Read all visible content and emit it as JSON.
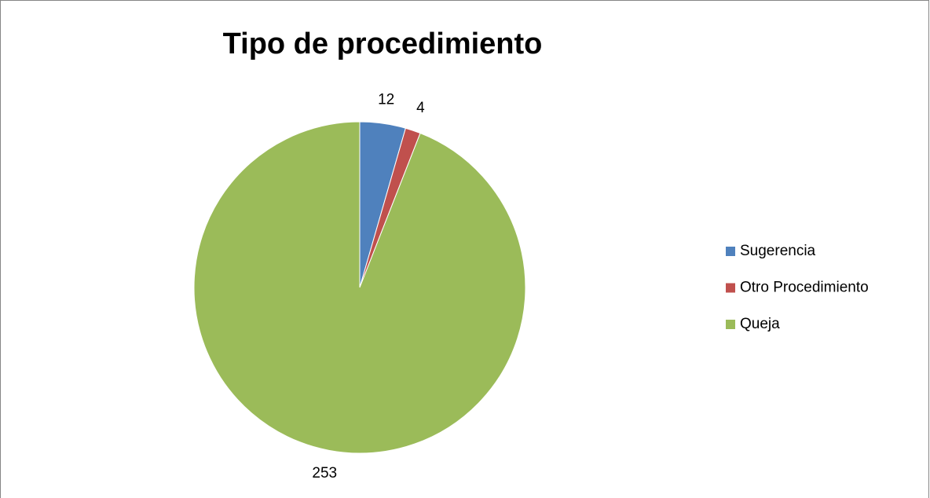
{
  "chart_data": {
    "type": "pie",
    "title": "Tipo de procedimiento",
    "categories": [
      "Sugerencia",
      "Otro Procedimiento",
      "Queja"
    ],
    "values": [
      12,
      4,
      253
    ],
    "colors": [
      "#4f81bd",
      "#c0504d",
      "#9bbb59"
    ],
    "legend": "right"
  }
}
